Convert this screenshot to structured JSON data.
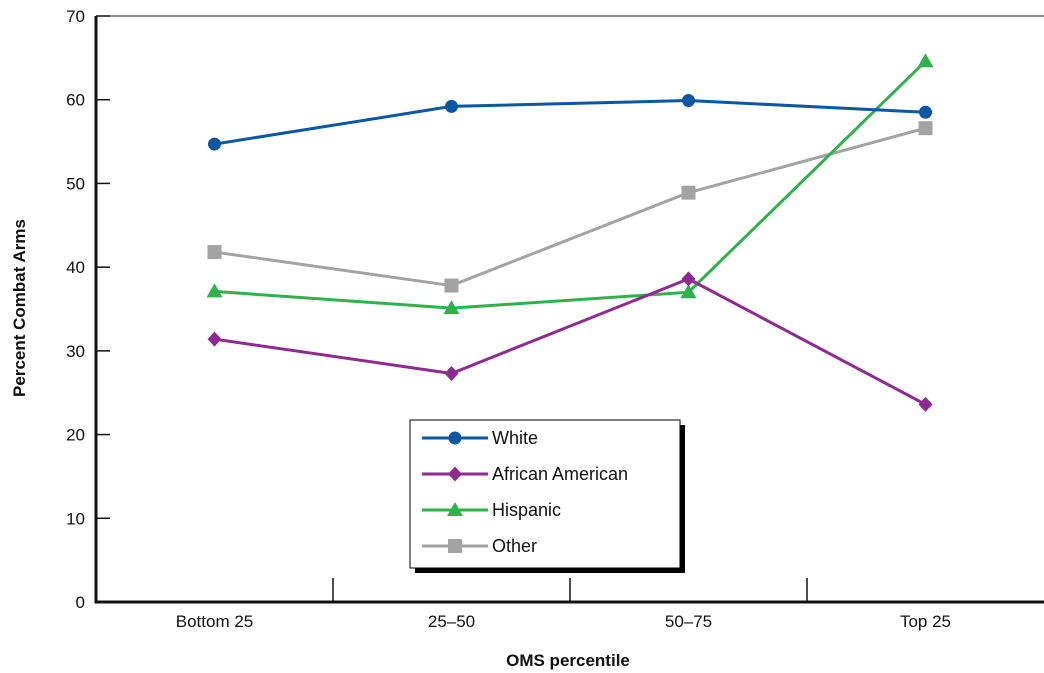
{
  "chart_data": {
    "type": "line",
    "title": "",
    "xlabel": "OMS percentile",
    "ylabel": "Percent Combat Arms",
    "categories": [
      "Bottom 25",
      "25–50",
      "50–75",
      "Top 25"
    ],
    "ylim": [
      0,
      70
    ],
    "yticks": [
      "0",
      "10",
      "20",
      "30",
      "40",
      "50",
      "60",
      "70"
    ],
    "grid": false,
    "legend_position": "bottom-center",
    "series": [
      {
        "name": "White",
        "color": "#0b57a4",
        "marker": "circle",
        "values": [
          54.7,
          59.2,
          59.9,
          58.5
        ]
      },
      {
        "name": "African American",
        "color": "#8e2a92",
        "marker": "diamond",
        "values": [
          31.4,
          27.3,
          38.6,
          23.6
        ]
      },
      {
        "name": "Hispanic",
        "color": "#2fb24b",
        "marker": "triangle",
        "values": [
          37.1,
          35.1,
          37.0,
          64.6
        ]
      },
      {
        "name": "Other",
        "color": "#a3a3a3",
        "marker": "square",
        "values": [
          41.8,
          37.8,
          48.9,
          56.6
        ]
      }
    ]
  }
}
